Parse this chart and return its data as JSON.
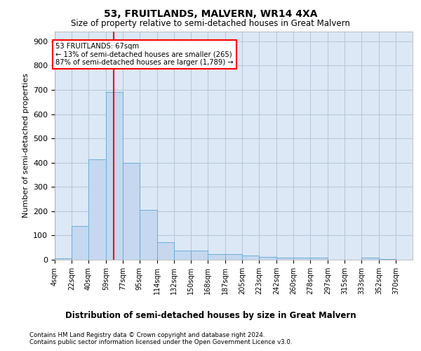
{
  "title": "53, FRUITLANDS, MALVERN, WR14 4XA",
  "subtitle": "Size of property relative to semi-detached houses in Great Malvern",
  "xlabel_bottom": "Distribution of semi-detached houses by size in Great Malvern",
  "ylabel": "Number of semi-detached properties",
  "footnote": "Contains HM Land Registry data © Crown copyright and database right 2024.\nContains public sector information licensed under the Open Government Licence v3.0.",
  "bar_color": "#c5d8f0",
  "bar_edge_color": "#6baed6",
  "grid_color": "#b8c8dc",
  "background_color": "#dce8f5",
  "property_size": 67,
  "red_line_color": "red",
  "annotation_box_text": "53 FRUITLANDS: 67sqm\n← 13% of semi-detached houses are smaller (265)\n87% of semi-detached houses are larger (1,789) →",
  "bin_labels": [
    "4sqm",
    "22sqm",
    "40sqm",
    "59sqm",
    "77sqm",
    "95sqm",
    "114sqm",
    "132sqm",
    "150sqm",
    "168sqm",
    "187sqm",
    "205sqm",
    "223sqm",
    "242sqm",
    "260sqm",
    "278sqm",
    "297sqm",
    "315sqm",
    "333sqm",
    "352sqm",
    "370sqm"
  ],
  "bin_edges": [
    4,
    22,
    40,
    59,
    77,
    95,
    114,
    132,
    150,
    168,
    187,
    205,
    223,
    242,
    260,
    278,
    297,
    315,
    333,
    352,
    370
  ],
  "bar_heights": [
    5,
    140,
    415,
    690,
    400,
    205,
    72,
    37,
    37,
    22,
    22,
    17,
    12,
    10,
    8,
    10,
    0,
    0,
    10,
    2,
    0
  ],
  "ylim": [
    0,
    940
  ],
  "yticks": [
    0,
    100,
    200,
    300,
    400,
    500,
    600,
    700,
    800,
    900
  ]
}
